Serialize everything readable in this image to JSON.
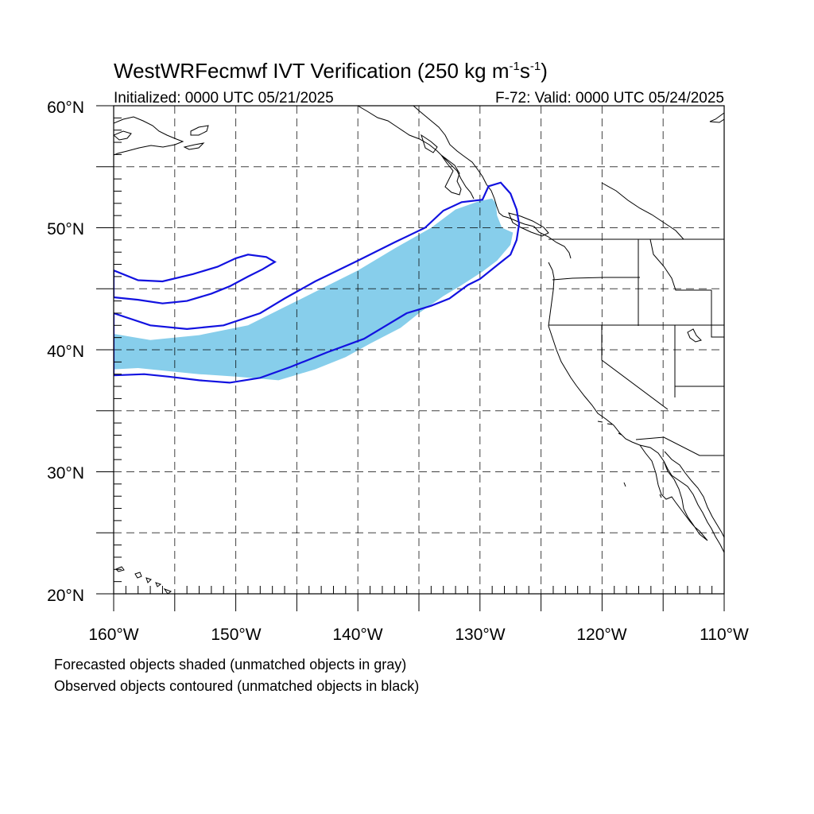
{
  "title": {
    "main": "WestWRFecmwf IVT Verification (250 kg m",
    "sup1": "-1",
    "mid": "s",
    "sup2": "-1",
    "end": ")"
  },
  "subtitle": {
    "left": "Initialized: 0000 UTC 05/21/2025",
    "right": "F-72: Valid: 0000 UTC 05/24/2025"
  },
  "axes": {
    "lon_labels": [
      "160°W",
      "150°W",
      "140°W",
      "130°W",
      "120°W",
      "110°W"
    ],
    "lat_labels": [
      "60°N",
      "50°N",
      "40°N",
      "30°N",
      "20°N"
    ],
    "lon_range": [
      -160,
      -110
    ],
    "lat_range": [
      20,
      60
    ],
    "grid_interval_deg": 5,
    "grid": true
  },
  "legend_notes": [
    "Forecasted objects shaded (unmatched objects in gray)",
    "Observed objects contoured (unmatched objects in black)"
  ],
  "colors": {
    "forecast_fill": "#87ceeb",
    "observed_contour": "#1212e0",
    "coastline": "#000000"
  },
  "map_data": {
    "threshold": "250 kg m-1 s-1",
    "forecast_object": {
      "type": "shaded",
      "matched": true,
      "outline_lonlat": [
        [
          -160,
          41.3
        ],
        [
          -157,
          40.8
        ],
        [
          -153,
          41.2
        ],
        [
          -149,
          42.0
        ],
        [
          -146,
          43.5
        ],
        [
          -143,
          45.0
        ],
        [
          -140,
          46.5
        ],
        [
          -137,
          48.3
        ],
        [
          -134,
          50.0
        ],
        [
          -132,
          51.5
        ],
        [
          -130,
          52.2
        ],
        [
          -129,
          52.4
        ],
        [
          -128.7,
          52.0
        ],
        [
          -128.6,
          51.0
        ],
        [
          -128.2,
          50.0
        ],
        [
          -127.3,
          49.6
        ],
        [
          -127.5,
          48.6
        ],
        [
          -128.6,
          47.3
        ],
        [
          -129.8,
          46.4
        ],
        [
          -131.5,
          45.3
        ],
        [
          -133,
          44.4
        ],
        [
          -135,
          43.0
        ],
        [
          -136.5,
          41.8
        ],
        [
          -139,
          40.5
        ],
        [
          -141,
          39.4
        ],
        [
          -143.5,
          38.4
        ],
        [
          -146.5,
          37.5
        ],
        [
          -150,
          37.8
        ],
        [
          -153,
          38.0
        ],
        [
          -156,
          38.3
        ],
        [
          -158,
          38.5
        ],
        [
          -160,
          38.4
        ]
      ]
    },
    "observed_objects": [
      {
        "type": "contour",
        "matched": true,
        "outline_lonlat": [
          [
            -160,
            43.0
          ],
          [
            -157,
            42.0
          ],
          [
            -154,
            41.7
          ],
          [
            -151,
            42.0
          ],
          [
            -148,
            43.0
          ],
          [
            -146,
            44.2
          ],
          [
            -143.5,
            45.6
          ],
          [
            -140,
            47.3
          ],
          [
            -137,
            48.8
          ],
          [
            -134.5,
            50.0
          ],
          [
            -133,
            51.4
          ],
          [
            -131.5,
            52.1
          ],
          [
            -129.8,
            52.3
          ],
          [
            -129.3,
            53.4
          ],
          [
            -128.3,
            53.7
          ],
          [
            -127.5,
            52.8
          ],
          [
            -127,
            51.5
          ],
          [
            -126.8,
            50.3
          ],
          [
            -127,
            49.0
          ],
          [
            -127.5,
            47.8
          ],
          [
            -128.5,
            47.0
          ],
          [
            -130,
            45.8
          ],
          [
            -131,
            45.3
          ],
          [
            -132.5,
            44.2
          ],
          [
            -134,
            43.6
          ],
          [
            -136,
            43.0
          ],
          [
            -138,
            41.8
          ],
          [
            -139.5,
            40.9
          ],
          [
            -142.5,
            39.8
          ],
          [
            -145.5,
            38.6
          ],
          [
            -148,
            37.7
          ],
          [
            -150.5,
            37.3
          ],
          [
            -153,
            37.5
          ],
          [
            -155.5,
            37.8
          ],
          [
            -157.5,
            38.0
          ],
          [
            -160,
            37.9
          ]
        ]
      },
      {
        "type": "contour",
        "matched": true,
        "outline_lonlat": [
          [
            -160,
            46.5
          ],
          [
            -158,
            45.7
          ],
          [
            -156,
            45.6
          ],
          [
            -153.5,
            46.2
          ],
          [
            -151.5,
            46.8
          ],
          [
            -150,
            47.5
          ],
          [
            -149,
            47.8
          ],
          [
            -147.5,
            47.6
          ],
          [
            -146.8,
            47.2
          ],
          [
            -147.8,
            46.6
          ],
          [
            -149,
            46.0
          ],
          [
            -150.5,
            45.2
          ],
          [
            -152,
            44.6
          ],
          [
            -154,
            44.0
          ],
          [
            -156,
            43.8
          ],
          [
            -158,
            44.1
          ],
          [
            -160,
            44.3
          ]
        ]
      }
    ]
  }
}
